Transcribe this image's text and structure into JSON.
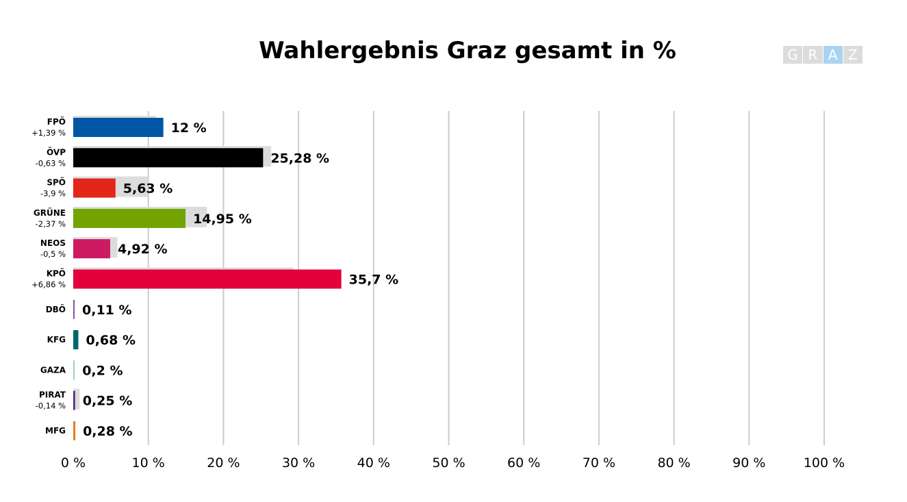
{
  "chart_data": {
    "type": "bar",
    "orientation": "horizontal",
    "title": "Wahlergebnis Graz gesamt in %",
    "logo_letters": [
      "G",
      "R",
      "A",
      "Z"
    ],
    "categories": [
      "FPÖ",
      "ÖVP",
      "SPÖ",
      "GRÜNE",
      "NEOS",
      "KPÖ",
      "DBÖ",
      "KFG",
      "GAZA",
      "PIRAT",
      "MFG"
    ],
    "change_labels": [
      "+1,39 %",
      "-0,63 %",
      "-3,9 %",
      "-2,37 %",
      "-0,5 %",
      "+6,86 %",
      "",
      "",
      "",
      "-0,14 %",
      ""
    ],
    "series": [
      {
        "values": [
          12,
          25.28,
          5.63,
          14.95,
          4.92,
          35.7,
          0.11,
          0.68,
          0.2,
          0.25,
          0.28
        ],
        "value_labels": [
          "12 %",
          "25,28 %",
          "5,63 %",
          "14,95 %",
          "4,92 %",
          "35,7 %",
          "0,11 %",
          "0,68 %",
          "0,2 %",
          "0,25 %",
          "0,28 %"
        ],
        "colors": [
          "#0056a4",
          "#000000",
          "#e3251a",
          "#72a300",
          "#cc1b62",
          "#e3003c",
          "#8c4f9f",
          "#00666b",
          "#9fd6b9",
          "#5a2c83",
          "#e67e22"
        ]
      },
      {
        "values": [
          10.61,
          25.91,
          9.53,
          17.32,
          5.42,
          28.84,
          null,
          null,
          null,
          0.39,
          null
        ],
        "color": "#dcdcdc"
      }
    ],
    "x_ticks": [
      0,
      10,
      20,
      30,
      40,
      50,
      60,
      70,
      80,
      90,
      100
    ],
    "x_tick_labels": [
      "0 %",
      "10 %",
      "20 %",
      "30 %",
      "40 %",
      "50 %",
      "60 %",
      "70 %",
      "80 %",
      "90 %",
      "100 %"
    ],
    "xlim": [
      0,
      100
    ],
    "grid": true,
    "gridline_color": "#cccccc"
  }
}
